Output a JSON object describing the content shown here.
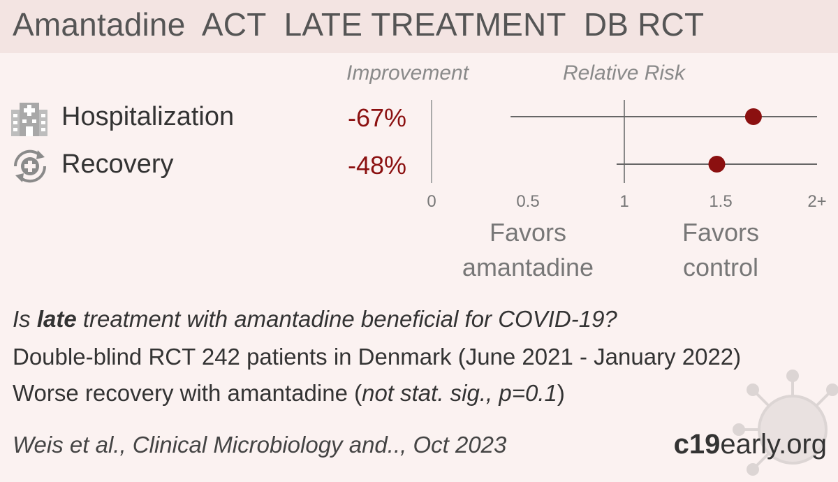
{
  "header": {
    "title": "Amantadine  ACT  LATE TREATMENT  DB RCT"
  },
  "columns": {
    "improvement": "Improvement",
    "relative_risk": "Relative Risk"
  },
  "chart_data": {
    "type": "forest",
    "x_ticks": [
      "0",
      "0.5",
      "1",
      "1.5",
      "2+"
    ],
    "x_tick_values": [
      0,
      0.5,
      1,
      1.5,
      2
    ],
    "xlim": [
      0,
      2
    ],
    "reference_line": 1,
    "rows": [
      {
        "label": "Hospitalization",
        "improvement": "-67%",
        "rr": 1.67,
        "ci_low": 0.41,
        "ci_high": 2.0,
        "icon": "hospital-icon"
      },
      {
        "label": "Recovery",
        "improvement": "-48%",
        "rr": 1.48,
        "ci_low": 0.96,
        "ci_high": 2.0,
        "icon": "recovery-icon"
      }
    ],
    "favors_left": [
      "Favors",
      "amantadine"
    ],
    "favors_right": [
      "Favors",
      "control"
    ],
    "point_color": "#8b1010",
    "line_color": "#666666"
  },
  "summary": {
    "q_pre": "Is ",
    "q_bold": "late",
    "q_post": " treatment with amantadine beneficial for COVID-19?",
    "line2": "Double-blind RCT 242 patients in Denmark (June 2021 - January 2022)",
    "line3_main": "Worse recovery with amantadine (",
    "line3_italic": "not stat. sig., p=0.1",
    "line3_end": ")"
  },
  "footer": {
    "citation": "Weis et al., Clinical Microbiology and.., Oct 2023",
    "brand_strong": "c19",
    "brand_rest": "early.org"
  }
}
